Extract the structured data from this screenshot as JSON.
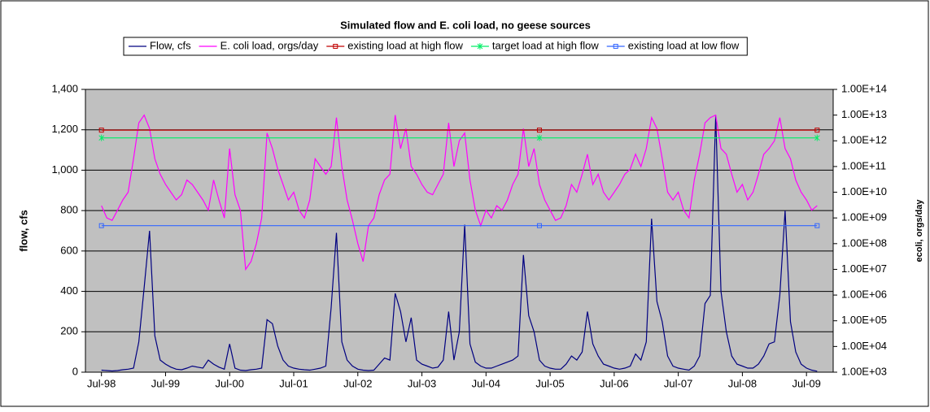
{
  "chart_data": {
    "type": "line",
    "title": "Simulated flow and E. coli load, no geese sources",
    "ylabel": "flow, cfs",
    "y2label": "ecoli, orgs/day",
    "x": [
      "1998-07",
      "1998-08",
      "1998-09",
      "1998-10",
      "1998-11",
      "1998-12",
      "1999-01",
      "1999-02",
      "1999-03",
      "1999-04",
      "1999-05",
      "1999-06",
      "1999-07",
      "1999-08",
      "1999-09",
      "1999-10",
      "1999-11",
      "1999-12",
      "2000-01",
      "2000-02",
      "2000-03",
      "2000-04",
      "2000-05",
      "2000-06",
      "2000-07",
      "2000-08",
      "2000-09",
      "2000-10",
      "2000-11",
      "2000-12",
      "2001-01",
      "2001-02",
      "2001-03",
      "2001-04",
      "2001-05",
      "2001-06",
      "2001-07",
      "2001-08",
      "2001-09",
      "2001-10",
      "2001-11",
      "2001-12",
      "2002-01",
      "2002-02",
      "2002-03",
      "2002-04",
      "2002-05",
      "2002-06",
      "2002-07",
      "2002-08",
      "2002-09",
      "2002-10",
      "2002-11",
      "2002-12",
      "2003-01",
      "2003-02",
      "2003-03",
      "2003-04",
      "2003-05",
      "2003-06",
      "2003-07",
      "2003-08",
      "2003-09",
      "2003-10",
      "2003-11",
      "2003-12",
      "2004-01",
      "2004-02",
      "2004-03",
      "2004-04",
      "2004-05",
      "2004-06",
      "2004-07",
      "2004-08",
      "2004-09",
      "2004-10",
      "2004-11",
      "2004-12",
      "2005-01",
      "2005-02",
      "2005-03",
      "2005-04",
      "2005-05",
      "2005-06",
      "2005-07",
      "2005-08",
      "2005-09",
      "2005-10",
      "2005-11",
      "2005-12",
      "2006-01",
      "2006-02",
      "2006-03",
      "2006-04",
      "2006-05",
      "2006-06",
      "2006-07",
      "2006-08",
      "2006-09",
      "2006-10",
      "2006-11",
      "2006-12",
      "2007-01",
      "2007-02",
      "2007-03",
      "2007-04",
      "2007-05",
      "2007-06",
      "2007-07",
      "2007-08",
      "2007-09",
      "2007-10",
      "2007-11",
      "2007-12",
      "2008-01",
      "2008-02",
      "2008-03",
      "2008-04",
      "2008-05",
      "2008-06",
      "2008-07",
      "2008-08",
      "2008-09",
      "2008-10",
      "2008-11",
      "2008-12",
      "2009-01",
      "2009-02",
      "2009-03",
      "2009-04",
      "2009-05",
      "2009-06",
      "2009-07",
      "2009-08",
      "2009-09"
    ],
    "series": [
      {
        "name": "Flow, cfs",
        "color": "#000080",
        "axis": "y",
        "values": [
          10,
          8,
          6,
          8,
          12,
          15,
          20,
          150,
          420,
          700,
          180,
          60,
          40,
          25,
          15,
          12,
          20,
          30,
          25,
          20,
          60,
          40,
          25,
          15,
          140,
          20,
          10,
          8,
          12,
          15,
          20,
          260,
          240,
          130,
          60,
          30,
          20,
          15,
          12,
          10,
          15,
          20,
          30,
          320,
          690,
          150,
          60,
          30,
          15,
          10,
          8,
          10,
          40,
          70,
          60,
          390,
          300,
          150,
          270,
          60,
          40,
          30,
          20,
          25,
          60,
          300,
          60,
          200,
          730,
          140,
          50,
          30,
          20,
          20,
          30,
          40,
          50,
          60,
          80,
          580,
          280,
          200,
          60,
          30,
          20,
          15,
          15,
          40,
          80,
          60,
          100,
          300,
          140,
          80,
          40,
          30,
          20,
          15,
          20,
          30,
          90,
          60,
          150,
          760,
          350,
          250,
          80,
          30,
          20,
          15,
          10,
          30,
          80,
          340,
          380,
          1270,
          400,
          200,
          80,
          40,
          30,
          20,
          20,
          40,
          80,
          140,
          150,
          380,
          800,
          250,
          100,
          40,
          20,
          10,
          5
        ]
      },
      {
        "name": "E. coli load, orgs/day",
        "color": "#ff00ff",
        "axis": "y2",
        "values": [
          3000000000.0,
          1000000000.0,
          800000000.0,
          2000000000.0,
          5000000000.0,
          10000000000.0,
          200000000000.0,
          5000000000000.0,
          10000000000000.0,
          3000000000000.0,
          200000000000.0,
          50000000000.0,
          20000000000.0,
          10000000000.0,
          5000000000.0,
          8000000000.0,
          30000000000.0,
          20000000000.0,
          10000000000.0,
          5000000000.0,
          2000000000.0,
          30000000000.0,
          5000000000.0,
          1000000000.0,
          500000000000.0,
          8000000000.0,
          2000000000.0,
          10000000.0,
          20000000.0,
          100000000.0,
          1000000000.0,
          2000000000000.0,
          500000000000.0,
          80000000000.0,
          20000000000.0,
          5000000000.0,
          10000000000.0,
          2000000000.0,
          1000000000.0,
          5000000000.0,
          200000000000.0,
          100000000000.0,
          50000000000.0,
          100000000000.0,
          8000000000000.0,
          100000000000.0,
          5000000000.0,
          800000000.0,
          100000000.0,
          20000000.0,
          500000000.0,
          1000000000.0,
          8000000000.0,
          30000000000.0,
          50000000000.0,
          10000000000000.0,
          500000000000.0,
          3000000000000.0,
          100000000000.0,
          50000000000.0,
          20000000000.0,
          10000000000.0,
          8000000000.0,
          20000000000.0,
          50000000000.0,
          5000000000000.0,
          100000000000.0,
          1000000000000.0,
          2000000000000.0,
          30000000000.0,
          2000000000.0,
          500000000.0,
          2000000000.0,
          1000000000.0,
          3000000000.0,
          2000000000.0,
          5000000000.0,
          20000000000.0,
          50000000000.0,
          3000000000000.0,
          100000000000.0,
          500000000000.0,
          20000000000.0,
          5000000000.0,
          2000000000.0,
          800000000.0,
          1000000000.0,
          3000000000.0,
          20000000000.0,
          10000000000.0,
          50000000000.0,
          300000000000.0,
          20000000000.0,
          50000000000.0,
          10000000000.0,
          5000000000.0,
          10000000000.0,
          20000000000.0,
          50000000000.0,
          80000000000.0,
          300000000000.0,
          100000000000.0,
          500000000000.0,
          8000000000000.0,
          3000000000000.0,
          200000000000.0,
          10000000000.0,
          5000000000.0,
          10000000000.0,
          2000000000.0,
          1000000000.0,
          30000000000.0,
          300000000000.0,
          5000000000000.0,
          8000000000000.0,
          10000000000000.0,
          500000000000.0,
          300000000000.0,
          50000000000.0,
          10000000000.0,
          20000000000.0,
          5000000000.0,
          10000000000.0,
          50000000000.0,
          300000000000.0,
          500000000000.0,
          1000000000000.0,
          8000000000000.0,
          500000000000.0,
          200000000000.0,
          30000000000.0,
          10000000000.0,
          5000000000.0,
          2000000000.0,
          3000000000.0
        ]
      },
      {
        "name": "existing load at high flow",
        "color": "#c00000",
        "axis": "y2",
        "marker": "square",
        "x": [
          "1998-07",
          "2005-05",
          "2009-09"
        ],
        "values": [
          2600000000000.0,
          2600000000000.0,
          2600000000000.0
        ]
      },
      {
        "name": "target load at high flow",
        "color": "#00ee66",
        "axis": "y2",
        "marker": "x",
        "x": [
          "1998-07",
          "2005-05",
          "2009-09"
        ],
        "values": [
          1300000000000.0,
          1300000000000.0,
          1300000000000.0
        ]
      },
      {
        "name": "existing load at low flow",
        "color": "#3366ff",
        "axis": "y2",
        "marker": "square",
        "x": [
          "1998-07",
          "2005-05",
          "2009-09"
        ],
        "values": [
          500000000.0,
          500000000.0,
          500000000.0
        ]
      }
    ],
    "xlim": [
      "1998-04",
      "2009-12"
    ],
    "xticks": [
      {
        "value": "1998-07",
        "label": "Jul-98"
      },
      {
        "value": "1999-07",
        "label": "Jul-99"
      },
      {
        "value": "2000-07",
        "label": "Jul-00"
      },
      {
        "value": "2001-07",
        "label": "Jul-01"
      },
      {
        "value": "2002-07",
        "label": "Jul-02"
      },
      {
        "value": "2003-07",
        "label": "Jul-03"
      },
      {
        "value": "2004-07",
        "label": "Jul-04"
      },
      {
        "value": "2005-07",
        "label": "Jul-05"
      },
      {
        "value": "2006-07",
        "label": "Jul-06"
      },
      {
        "value": "2007-07",
        "label": "Jul-07"
      },
      {
        "value": "2008-07",
        "label": "Jul-08"
      },
      {
        "value": "2009-07",
        "label": "Jul-09"
      }
    ],
    "ylim": [
      0,
      1400
    ],
    "yticks": [
      0,
      200,
      400,
      600,
      800,
      {
        "value": 1000,
        "label": "1,000"
      },
      {
        "value": 1200,
        "label": "1,200"
      },
      {
        "value": 1400,
        "label": "1,400"
      }
    ],
    "y2scale": "log",
    "y2lim": [
      1000.0,
      100000000000000.0
    ],
    "y2ticks": [
      {
        "value": 1000.0,
        "label": "1.00E+03"
      },
      {
        "value": 10000.0,
        "label": "1.00E+04"
      },
      {
        "value": 100000.0,
        "label": "1.00E+05"
      },
      {
        "value": 1000000.0,
        "label": "1.00E+06"
      },
      {
        "value": 10000000.0,
        "label": "1.00E+07"
      },
      {
        "value": 100000000.0,
        "label": "1.00E+08"
      },
      {
        "value": 1000000000.0,
        "label": "1.00E+09"
      },
      {
        "value": 10000000000.0,
        "label": "1.00E+10"
      },
      {
        "value": 100000000000.0,
        "label": "1.00E+11"
      },
      {
        "value": 1000000000000.0,
        "label": "1.00E+12"
      },
      {
        "value": 10000000000000.0,
        "label": "1.00E+13"
      },
      {
        "value": 100000000000000.0,
        "label": "1.00E+14"
      }
    ],
    "grid": true,
    "legend": "top",
    "background": "#c0c0c0"
  }
}
